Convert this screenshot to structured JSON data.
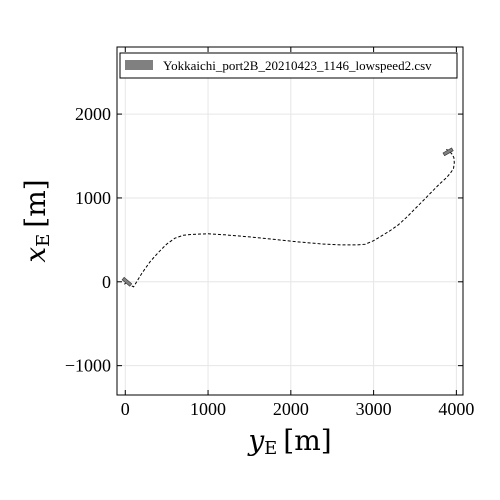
{
  "chart_data": {
    "type": "line",
    "xlabel_main": "y",
    "xlabel_sub": "E",
    "xlabel_unit": "[m]",
    "ylabel_main": "x",
    "ylabel_sub": "E",
    "ylabel_unit": "[m]",
    "xlim": [
      -100,
      4080
    ],
    "ylim": [
      -1350,
      2800
    ],
    "x_ticks": [
      0,
      1000,
      2000,
      3000,
      4000
    ],
    "y_ticks": [
      -1000,
      0,
      1000,
      2000
    ],
    "x_tick_labels": [
      "0",
      "1000",
      "2000",
      "3000",
      "4000"
    ],
    "y_tick_labels": [
      "−1000",
      "0",
      "1000",
      "2000"
    ],
    "grid": true,
    "legend_placement": "top",
    "series": [
      {
        "name": "Yokkaichi_port2B_20210423_1146_lowspeed2.csv",
        "color": "#000000",
        "style": "dashed",
        "x": [
          -10,
          20,
          60,
          100,
          150,
          200,
          300,
          400,
          500,
          600,
          700,
          800,
          1000,
          1200,
          1500,
          1800,
          2100,
          2400,
          2600,
          2800,
          2900,
          3000,
          3100,
          3200,
          3300,
          3400,
          3500,
          3600,
          3700,
          3800,
          3880,
          3930,
          3965,
          3975,
          3970,
          3950,
          3920,
          3880
        ],
        "y": [
          -30,
          0,
          -40,
          -60,
          20,
          100,
          240,
          350,
          450,
          520,
          555,
          565,
          572,
          560,
          535,
          505,
          475,
          450,
          440,
          440,
          448,
          490,
          550,
          610,
          680,
          770,
          870,
          970,
          1070,
          1170,
          1240,
          1300,
          1350,
          1420,
          1480,
          1520,
          1550,
          1580
        ]
      }
    ],
    "ship_markers": [
      {
        "x": 20,
        "y": 0,
        "heading_deg": 40
      },
      {
        "x": 3900,
        "y": 1550,
        "heading_deg": -30
      }
    ],
    "marker_color": "#808080"
  }
}
